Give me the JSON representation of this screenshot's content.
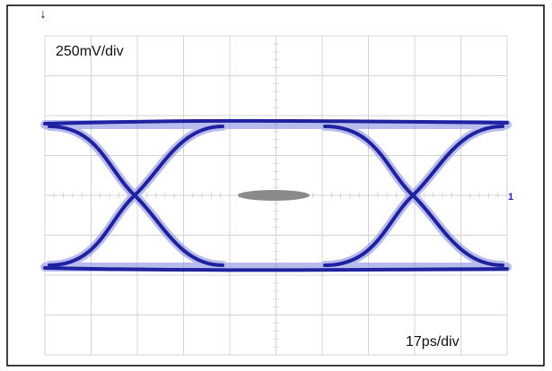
{
  "screen": {
    "vertical_scale": "250mV/div",
    "horizontal_scale": "17ps/div",
    "channel_marker": "1"
  }
}
